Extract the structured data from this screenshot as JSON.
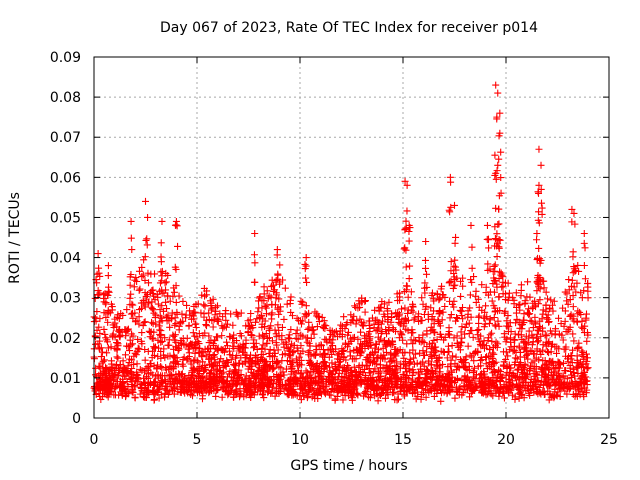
{
  "chart_data": {
    "type": "scatter",
    "title": "Day 067 of 2023, Rate Of TEC Index for receiver p014",
    "xlabel": "GPS time / hours",
    "ylabel": "ROTI / TECUs",
    "xlim": [
      0,
      25
    ],
    "ylim": [
      0,
      0.09
    ],
    "xticks": [
      0,
      5,
      10,
      15,
      20,
      25
    ],
    "yticks": [
      0,
      0.01,
      0.02,
      0.03,
      0.04,
      0.05,
      0.06,
      0.07,
      0.08,
      0.09
    ],
    "xtick_labels": [
      "0",
      "5",
      "10",
      "15",
      "20",
      "25"
    ],
    "ytick_labels": [
      "0",
      "0.01",
      "0.02",
      "0.03",
      "0.04",
      "0.05",
      "0.06",
      "0.07",
      "0.08",
      "0.09"
    ],
    "grid": true,
    "marker": "+",
    "color": "#ff0000",
    "series": [
      {
        "name": "ROTI",
        "envelope": {
          "hours": [
            0,
            0.5,
            1,
            1.5,
            2,
            2.5,
            3,
            3.5,
            4,
            4.5,
            5,
            5.5,
            6,
            6.5,
            7,
            7.5,
            8,
            8.5,
            9,
            9.5,
            10,
            10.5,
            11,
            11.5,
            12,
            12.5,
            13,
            13.5,
            14,
            14.5,
            15,
            15.5,
            16,
            16.5,
            17,
            17.5,
            18,
            18.5,
            19,
            19.5,
            20,
            20.5,
            21,
            21.5,
            22,
            22.5,
            23,
            23.5,
            24
          ],
          "typical_max": [
            0.036,
            0.034,
            0.028,
            0.026,
            0.038,
            0.04,
            0.036,
            0.036,
            0.034,
            0.028,
            0.028,
            0.034,
            0.028,
            0.026,
            0.026,
            0.026,
            0.03,
            0.034,
            0.038,
            0.03,
            0.03,
            0.028,
            0.026,
            0.024,
            0.024,
            0.026,
            0.03,
            0.03,
            0.03,
            0.028,
            0.036,
            0.03,
            0.03,
            0.034,
            0.036,
            0.038,
            0.034,
            0.036,
            0.036,
            0.04,
            0.034,
            0.032,
            0.034,
            0.038,
            0.032,
            0.028,
            0.034,
            0.038,
            0.034
          ]
        },
        "peaks": [
          {
            "x": 0.2,
            "y": 0.041
          },
          {
            "x": 0.7,
            "y": 0.038
          },
          {
            "x": 1.8,
            "y": 0.049
          },
          {
            "x": 2.5,
            "y": 0.054
          },
          {
            "x": 2.6,
            "y": 0.05
          },
          {
            "x": 3.3,
            "y": 0.049
          },
          {
            "x": 4.0,
            "y": 0.049
          },
          {
            "x": 7.8,
            "y": 0.046
          },
          {
            "x": 8.9,
            "y": 0.042
          },
          {
            "x": 10.3,
            "y": 0.04
          },
          {
            "x": 15.1,
            "y": 0.059
          },
          {
            "x": 15.2,
            "y": 0.058
          },
          {
            "x": 15.3,
            "y": 0.048
          },
          {
            "x": 16.1,
            "y": 0.044
          },
          {
            "x": 17.3,
            "y": 0.06
          },
          {
            "x": 17.5,
            "y": 0.053
          },
          {
            "x": 18.3,
            "y": 0.048
          },
          {
            "x": 19.1,
            "y": 0.048
          },
          {
            "x": 19.5,
            "y": 0.083
          },
          {
            "x": 19.6,
            "y": 0.081
          },
          {
            "x": 19.7,
            "y": 0.076
          },
          {
            "x": 19.7,
            "y": 0.071
          },
          {
            "x": 19.6,
            "y": 0.063
          },
          {
            "x": 19.5,
            "y": 0.061
          },
          {
            "x": 21.6,
            "y": 0.067
          },
          {
            "x": 21.7,
            "y": 0.063
          },
          {
            "x": 21.6,
            "y": 0.058
          },
          {
            "x": 21.5,
            "y": 0.046
          },
          {
            "x": 23.2,
            "y": 0.052
          },
          {
            "x": 23.3,
            "y": 0.051
          },
          {
            "x": 23.8,
            "y": 0.046
          }
        ]
      }
    ]
  }
}
